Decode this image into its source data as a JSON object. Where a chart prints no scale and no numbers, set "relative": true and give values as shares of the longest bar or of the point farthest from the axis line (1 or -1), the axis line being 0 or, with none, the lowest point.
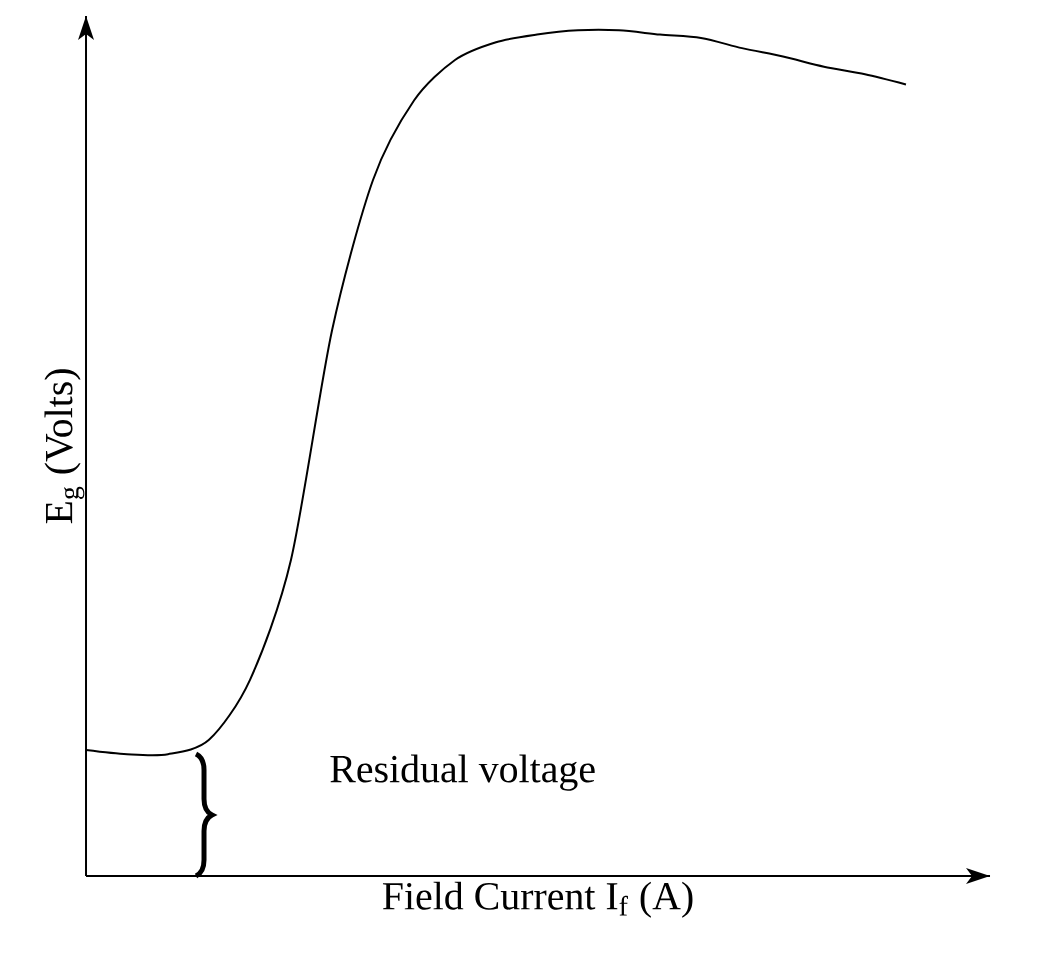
{
  "chart_data": {
    "type": "line",
    "xlabel": "Field Current I$_{f}$ (A)",
    "ylabel": "E$_{g}$ (Volts)",
    "relative": true,
    "color": "#000000",
    "marker": "none",
    "line_style": "solid",
    "grid": false,
    "annotations": [
      "Residual voltage"
    ],
    "categories": [
      null,
      null,
      null,
      null,
      null,
      null,
      null,
      null,
      null,
      null,
      null,
      null,
      null,
      null,
      null,
      null,
      null,
      null,
      null,
      null,
      null
    ],
    "values": [
      0.149,
      0.144,
      0.144,
      0.161,
      0.232,
      0.374,
      0.645,
      0.823,
      0.917,
      0.965,
      0.986,
      0.995,
      1.0,
      1.0,
      0.995,
      0.991,
      0.979,
      0.969,
      0.957,
      0.948,
      0.936
    ]
  }
}
